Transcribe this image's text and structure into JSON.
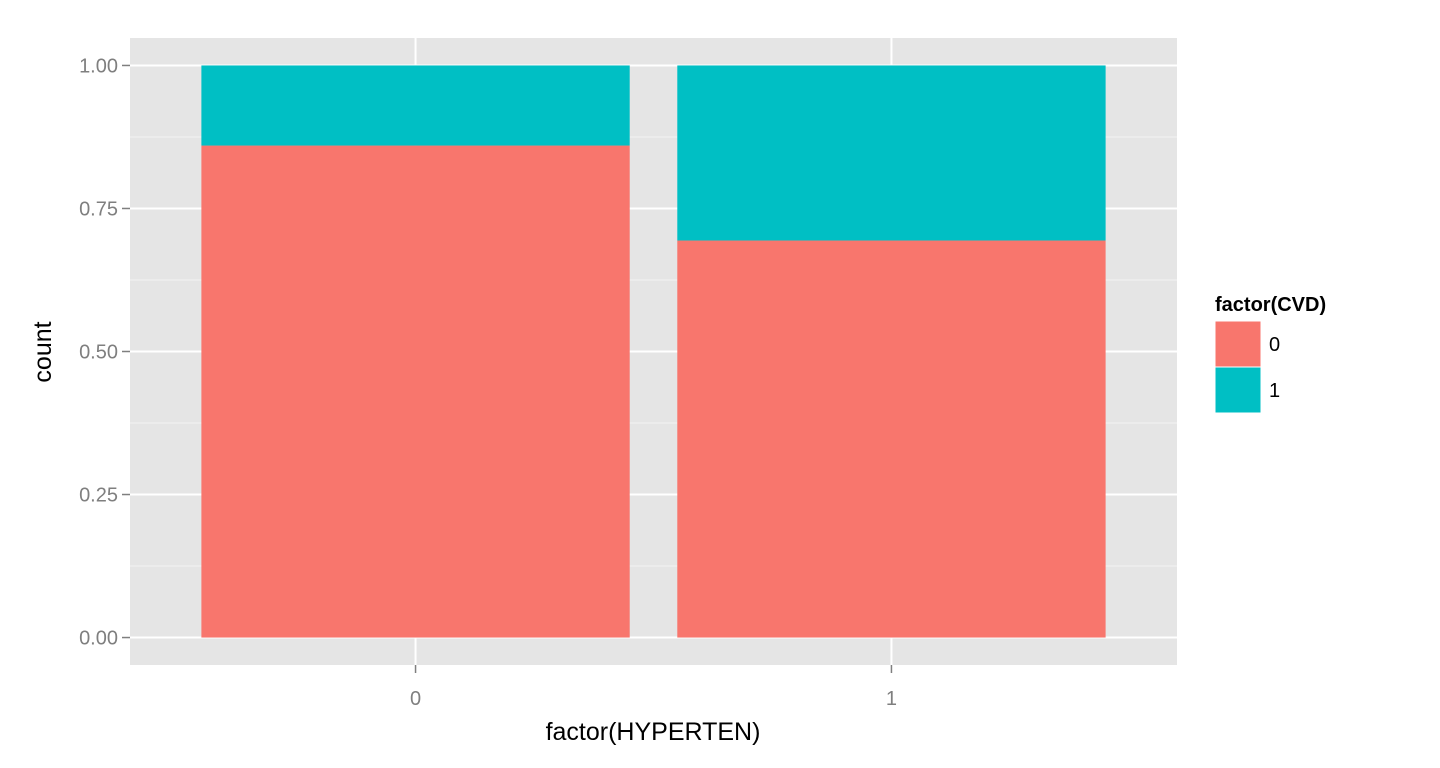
{
  "chart_data": {
    "type": "bar",
    "stacked": true,
    "xlabel": "factor(HYPERTEN)",
    "ylabel": "count",
    "categories": [
      "0",
      "1"
    ],
    "series": [
      {
        "name": "0",
        "values": [
          0.86,
          0.694
        ],
        "color": "#F8766D"
      },
      {
        "name": "1",
        "values": [
          0.14,
          0.306
        ],
        "color": "#00BFC4"
      }
    ],
    "ylim": [
      -0.048,
      1.048
    ],
    "yticks": [
      0,
      0.25,
      0.5,
      0.75,
      1
    ],
    "ytick_labels": [
      "0.00",
      "0.25",
      "0.50",
      "0.75",
      "1.00"
    ],
    "grid": true,
    "legend": {
      "title": "factor(CVD)",
      "placement": "right",
      "entries": [
        "0",
        "1"
      ]
    },
    "panel_background": "#E5E5E5",
    "grid_color": "#FFFFFF"
  }
}
